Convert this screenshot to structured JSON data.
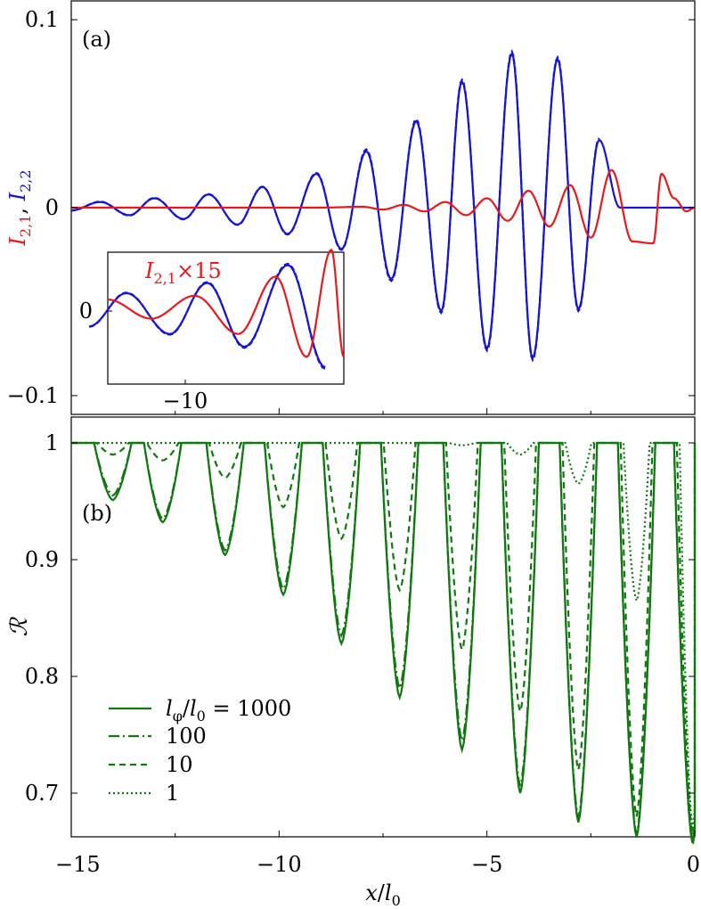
{
  "colors": {
    "red": "#e8191c",
    "blue": "#1515d2",
    "green": "#117711",
    "axis": "#000000",
    "background": "#ffffff"
  },
  "chart_data": [
    {
      "type": "line",
      "panel_label": "(a)",
      "ylabel": "I_{2,1}, I_{2,2}",
      "ylabel_parts": {
        "a": "I",
        "a_sub": "2,1",
        "sep": ", ",
        "b": "I",
        "b_sub": "2,2"
      },
      "xlim": [
        -15,
        0
      ],
      "ylim": [
        -0.11,
        0.11
      ],
      "y_ticks": [
        0.1,
        0,
        -0.1
      ],
      "y_tick_labels": [
        "0.1",
        "0",
        "−0.1"
      ],
      "grid": false,
      "series": [
        {
          "name": "I_{2,2}",
          "color": "blue",
          "style": "solid",
          "x": [
            -15,
            -14.3,
            -13.6,
            -13.0,
            -12.3,
            -11.7,
            -11.0,
            -10.4,
            -9.8,
            -9.1,
            -8.5,
            -7.9,
            -7.3,
            -6.7,
            -6.1,
            -5.6,
            -5.0,
            -4.4,
            -3.9,
            -3.3,
            -2.8,
            -2.3,
            -1.8,
            -1.3,
            -0.8,
            -0.3,
            0
          ],
          "y": [
            -0.0015,
            0.003,
            -0.004,
            0.005,
            -0.006,
            0.007,
            -0.009,
            0.011,
            -0.014,
            0.018,
            -0.022,
            0.03,
            -0.038,
            0.046,
            -0.055,
            0.067,
            -0.075,
            0.082,
            -0.08,
            0.079,
            -0.054,
            0.036,
            0,
            0,
            0,
            0,
            0
          ]
        },
        {
          "name": "I_{2,2} (dashed)",
          "color": "blue",
          "style": "dashed",
          "x": [
            -15,
            -14.3,
            -13.6,
            -13.0,
            -12.3,
            -11.7,
            -11.0,
            -10.4,
            -9.8,
            -9.1,
            -8.5,
            -7.9,
            -7.3,
            -6.7,
            -6.1,
            -5.6,
            -5.0,
            -4.4,
            -3.9,
            -3.3,
            -2.8,
            -2.3
          ],
          "y": [
            -0.0015,
            0.0032,
            -0.0042,
            0.0052,
            -0.0062,
            0.0072,
            -0.0092,
            0.0112,
            -0.0143,
            0.0185,
            -0.0225,
            0.031,
            -0.039,
            0.047,
            -0.056,
            0.068,
            -0.076,
            0.083,
            -0.081,
            0.08,
            -0.055,
            0.037
          ]
        },
        {
          "name": "I_{2,1}",
          "color": "red",
          "style": "solid",
          "x": [
            -15,
            -12,
            -9,
            -8,
            -7.5,
            -7.0,
            -6.5,
            -6.0,
            -5.5,
            -5.0,
            -4.5,
            -4.0,
            -3.5,
            -3.0,
            -2.5,
            -2.0,
            -1.5,
            -1.0,
            -0.8,
            -0.5,
            -0.2,
            0
          ],
          "y": [
            0,
            0,
            0,
            0.0005,
            -0.001,
            0.0015,
            -0.002,
            0.003,
            -0.004,
            0.005,
            -0.007,
            0.009,
            -0.01,
            0.012,
            -0.016,
            0.02,
            -0.018,
            -0.019,
            0.018,
            0.005,
            -0.002,
            0
          ]
        }
      ],
      "inset": {
        "label": "I_{2,1}×15",
        "label_parts": {
          "a": "I",
          "a_sub": "2,1",
          "rest": "×15"
        },
        "xlim": [
          -12,
          -8.2
        ],
        "x_ticks": [
          -10
        ],
        "x_tick_labels": [
          "−10"
        ],
        "y_ticks": [
          0
        ],
        "y_tick_labels": [
          "0"
        ]
      }
    },
    {
      "type": "line",
      "panel_label": "(b)",
      "ylabel": "ℛ",
      "xlabel": "x/l_0",
      "xlabel_parts": {
        "a": "x",
        "slash": "/",
        "b": "l",
        "b_sub": "0"
      },
      "xlim": [
        -15,
        0
      ],
      "ylim": [
        0.645,
        1.005
      ],
      "x_ticks": [
        -15,
        -10,
        -5,
        0
      ],
      "x_tick_labels": [
        "−15",
        "−10",
        "−5",
        "0"
      ],
      "y_ticks": [
        1,
        0.9,
        0.8,
        0.7
      ],
      "y_tick_labels": [
        "1",
        "0.9",
        "0.8",
        "0.7"
      ],
      "grid": false,
      "dip_centers": [
        -14.0,
        -12.8,
        -11.3,
        -9.9,
        -8.5,
        -7.1,
        -5.6,
        -4.2,
        -2.8,
        -1.4,
        -0.05
      ],
      "series": [
        {
          "name": "1000",
          "style": "solid",
          "minima": [
            0.951,
            0.932,
            0.904,
            0.87,
            0.828,
            0.782,
            0.737,
            0.7,
            0.675,
            0.662,
            0.657
          ]
        },
        {
          "name": "100",
          "style": "dashdot",
          "minima": [
            0.955,
            0.935,
            0.908,
            0.875,
            0.835,
            0.79,
            0.745,
            0.706,
            0.679,
            0.665,
            0.66
          ]
        },
        {
          "name": "10",
          "style": "dashed",
          "minima": [
            0.99,
            0.985,
            0.97,
            0.945,
            0.918,
            0.874,
            0.823,
            0.77,
            0.72,
            0.68,
            0.664
          ]
        },
        {
          "name": "1",
          "style": "dotted",
          "minima": [
            1.0,
            1.0,
            1.0,
            1.0,
            1.0,
            1.0,
            0.998,
            0.99,
            0.965,
            0.865,
            0.67
          ]
        }
      ],
      "legend": {
        "placement": "lower-left",
        "title_parts": {
          "a": "l",
          "a_sub": "φ",
          "slash": "/",
          "b": "l",
          "b_sub": "0",
          "eq": " = ",
          "val": "1000"
        },
        "entries": [
          "100",
          "10",
          "1"
        ]
      }
    }
  ]
}
